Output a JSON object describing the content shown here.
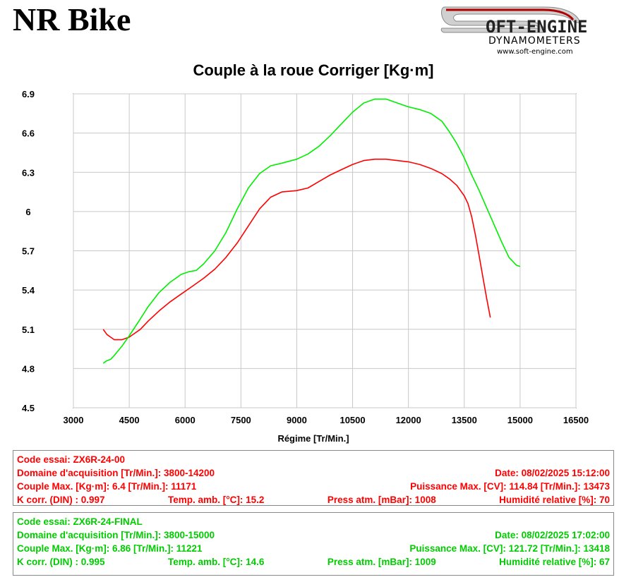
{
  "header": {
    "title": "NR Bike",
    "logo_name": "OFT-ENGINE",
    "logo_sub": "DYNAMOMETERS",
    "logo_url": "www.soft-engine.com"
  },
  "colors": {
    "run1": "#ff0000",
    "run2": "#00ee00",
    "grid": "#c8c8c8"
  },
  "chart_data": {
    "type": "line",
    "title": "Couple à la roue Corriger [Kg·m]",
    "xlabel": "Régime [Tr/Min.]",
    "ylabel": "",
    "xlim": [
      3000,
      16500
    ],
    "ylim": [
      4.5,
      6.9
    ],
    "xticks": [
      3000,
      4500,
      6000,
      7500,
      9000,
      10500,
      12000,
      13500,
      15000,
      16500
    ],
    "yticks": [
      4.5,
      4.8,
      5.1,
      5.4,
      5.7,
      6,
      6.3,
      6.6,
      6.9
    ],
    "grid": true,
    "series": [
      {
        "name": "ZX6R-24-00",
        "color": "#ff0000",
        "x": [
          3800,
          3900,
          4000,
          4100,
          4300,
          4500,
          4800,
          5000,
          5300,
          5600,
          5900,
          6200,
          6500,
          6800,
          7100,
          7400,
          7700,
          8000,
          8300,
          8600,
          9000,
          9300,
          9600,
          9900,
          10200,
          10500,
          10800,
          11100,
          11400,
          11700,
          12000,
          12300,
          12600,
          12900,
          13100,
          13300,
          13500,
          13600,
          13700,
          13800,
          13900,
          14000,
          14100,
          14200
        ],
        "y": [
          5.1,
          5.06,
          5.04,
          5.02,
          5.02,
          5.04,
          5.1,
          5.16,
          5.24,
          5.31,
          5.37,
          5.43,
          5.49,
          5.56,
          5.65,
          5.76,
          5.89,
          6.02,
          6.11,
          6.15,
          6.16,
          6.18,
          6.23,
          6.28,
          6.32,
          6.36,
          6.39,
          6.4,
          6.4,
          6.39,
          6.38,
          6.36,
          6.33,
          6.29,
          6.25,
          6.2,
          6.12,
          6.06,
          5.96,
          5.82,
          5.66,
          5.5,
          5.34,
          5.19
        ]
      },
      {
        "name": "ZX6R-24-FINAL",
        "color": "#00ee00",
        "x": [
          3800,
          3900,
          4000,
          4100,
          4300,
          4500,
          4800,
          5000,
          5300,
          5600,
          5900,
          6100,
          6300,
          6500,
          6800,
          7100,
          7400,
          7700,
          8000,
          8300,
          8600,
          9000,
          9300,
          9600,
          9900,
          10200,
          10500,
          10800,
          11100,
          11400,
          11700,
          12000,
          12300,
          12600,
          12900,
          13100,
          13300,
          13500,
          13700,
          13900,
          14100,
          14300,
          14500,
          14700,
          14900,
          15000
        ],
        "y": [
          4.84,
          4.86,
          4.87,
          4.9,
          4.97,
          5.05,
          5.18,
          5.27,
          5.38,
          5.46,
          5.52,
          5.54,
          5.55,
          5.6,
          5.7,
          5.84,
          6.02,
          6.18,
          6.29,
          6.35,
          6.37,
          6.4,
          6.44,
          6.5,
          6.58,
          6.67,
          6.76,
          6.83,
          6.86,
          6.86,
          6.83,
          6.8,
          6.78,
          6.75,
          6.69,
          6.61,
          6.52,
          6.41,
          6.28,
          6.16,
          6.03,
          5.9,
          5.77,
          5.65,
          5.59,
          5.58
        ]
      }
    ]
  },
  "runs": [
    {
      "code": "Code essai: ZX6R-24-00",
      "domain": "Domaine d'acquisition [Tr/Min.]: 3800-14200",
      "date": "Date: 08/02/2025   15:12:00",
      "couple": "Couple Max. [Kg·m]: 6.4   [Tr/Min.]: 11171",
      "puissance": "Puissance Max. [CV]: 114.84   [Tr/Min.]: 13473",
      "kcorr": "K corr. (DIN) : 0.997",
      "temp": "Temp. amb. [°C]: 15.2",
      "press": "Press atm. [mBar]: 1008",
      "humid": "Humidité relative [%]: 70"
    },
    {
      "code": "Code essai: ZX6R-24-FINAL",
      "domain": "Domaine d'acquisition [Tr/Min.]: 3800-15000",
      "date": "Date: 08/02/2025   17:02:00",
      "couple": "Couple Max. [Kg·m]: 6.86   [Tr/Min.]: 11221",
      "puissance": "Puissance Max. [CV]: 121.72   [Tr/Min.]: 13418",
      "kcorr": "K corr. (DIN) : 0.995",
      "temp": "Temp. amb. [°C]: 14.6",
      "press": "Press atm. [mBar]: 1009",
      "humid": "Humidité relative [%]: 67"
    }
  ]
}
